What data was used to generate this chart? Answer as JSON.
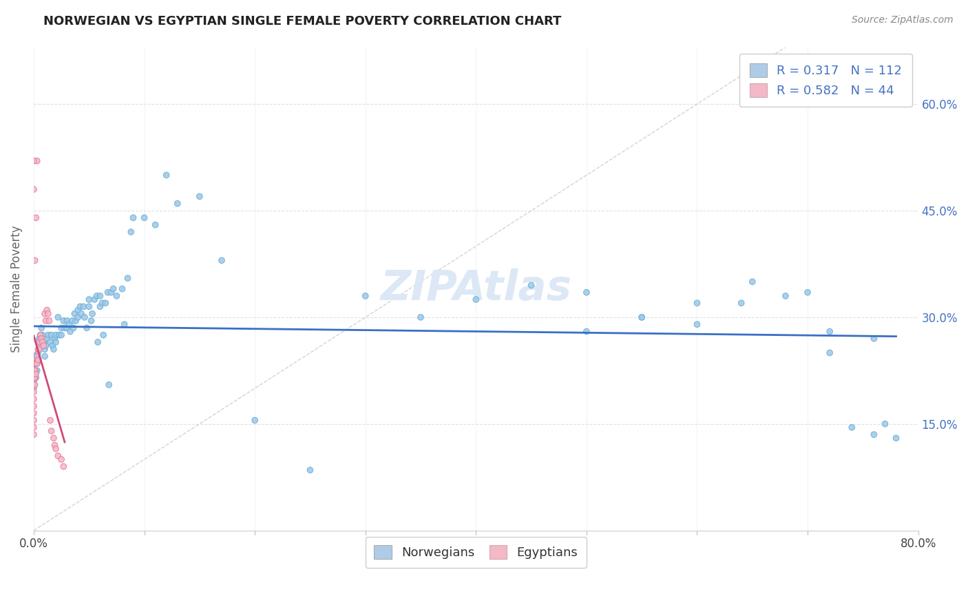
{
  "title": "NORWEGIAN VS EGYPTIAN SINGLE FEMALE POVERTY CORRELATION CHART",
  "source": "Source: ZipAtlas.com",
  "ylabel": "Single Female Poverty",
  "y_ticks": [
    0.15,
    0.3,
    0.45,
    0.6
  ],
  "y_tick_labels": [
    "15.0%",
    "30.0%",
    "45.0%",
    "60.0%"
  ],
  "x_range": [
    0.0,
    0.8
  ],
  "y_range": [
    0.0,
    0.68
  ],
  "x_ticks": [
    0.0,
    0.1,
    0.2,
    0.3,
    0.4,
    0.5,
    0.6,
    0.7,
    0.8
  ],
  "x_tick_labels": [
    "0.0%",
    "",
    "",
    "",
    "",
    "",
    "",
    "",
    "80.0%"
  ],
  "bottom_legend": [
    "Norwegians",
    "Egyptians"
  ],
  "norwegian_color": "#9dc8e8",
  "norwegian_edge": "#6aaed6",
  "egyptian_color": "#f4b8c8",
  "egyptian_edge": "#e87898",
  "norwegian_trend_color": "#3a6fc4",
  "egyptian_trend_color": "#d04878",
  "ref_line_color": "#c8c8c8",
  "watermark_color": "#dce8f5",
  "grid_color": "#e0e0e0",
  "r_n_color": "#4472c4",
  "title_color": "#222222",
  "source_color": "#888888",
  "ylabel_color": "#666666",
  "nor_legend_color": "#aecce8",
  "egy_legend_color": "#f4b8c8",
  "legend_R1": "0.317",
  "legend_N1": "112",
  "legend_R2": "0.582",
  "legend_N2": "44",
  "nor_x": [
    0.0,
    0.0,
    0.0,
    0.0,
    0.0,
    0.0,
    0.0,
    0.0,
    0.001,
    0.001,
    0.001,
    0.001,
    0.002,
    0.002,
    0.002,
    0.003,
    0.003,
    0.003,
    0.004,
    0.004,
    0.005,
    0.005,
    0.005,
    0.006,
    0.006,
    0.007,
    0.008,
    0.009,
    0.01,
    0.01,
    0.011,
    0.012,
    0.013,
    0.015,
    0.016,
    0.017,
    0.018,
    0.019,
    0.02,
    0.02,
    0.022,
    0.023,
    0.025,
    0.025,
    0.027,
    0.028,
    0.03,
    0.03,
    0.032,
    0.033,
    0.035,
    0.036,
    0.037,
    0.038,
    0.04,
    0.04,
    0.042,
    0.043,
    0.045,
    0.046,
    0.048,
    0.05,
    0.05,
    0.052,
    0.053,
    0.055,
    0.057,
    0.058,
    0.06,
    0.06,
    0.062,
    0.063,
    0.065,
    0.067,
    0.068,
    0.07,
    0.072,
    0.075,
    0.08,
    0.082,
    0.085,
    0.088,
    0.09,
    0.1,
    0.11,
    0.12,
    0.13,
    0.15,
    0.17,
    0.2,
    0.25,
    0.3,
    0.35,
    0.4,
    0.45,
    0.5,
    0.55,
    0.6,
    0.65,
    0.7,
    0.72,
    0.74,
    0.76,
    0.77,
    0.78,
    0.76,
    0.72,
    0.68,
    0.64,
    0.6,
    0.55,
    0.5
  ],
  "nor_y": [
    0.24,
    0.235,
    0.225,
    0.22,
    0.215,
    0.21,
    0.205,
    0.2,
    0.24,
    0.235,
    0.225,
    0.22,
    0.235,
    0.225,
    0.215,
    0.245,
    0.235,
    0.225,
    0.25,
    0.24,
    0.27,
    0.265,
    0.255,
    0.275,
    0.265,
    0.285,
    0.275,
    0.265,
    0.255,
    0.245,
    0.26,
    0.27,
    0.275,
    0.265,
    0.275,
    0.26,
    0.255,
    0.27,
    0.275,
    0.265,
    0.3,
    0.275,
    0.285,
    0.275,
    0.295,
    0.285,
    0.295,
    0.285,
    0.29,
    0.28,
    0.295,
    0.285,
    0.305,
    0.295,
    0.3,
    0.31,
    0.315,
    0.305,
    0.315,
    0.3,
    0.285,
    0.325,
    0.315,
    0.295,
    0.305,
    0.325,
    0.33,
    0.265,
    0.315,
    0.33,
    0.32,
    0.275,
    0.32,
    0.335,
    0.205,
    0.335,
    0.34,
    0.33,
    0.34,
    0.29,
    0.355,
    0.42,
    0.44,
    0.44,
    0.43,
    0.5,
    0.46,
    0.47,
    0.38,
    0.155,
    0.085,
    0.33,
    0.3,
    0.325,
    0.345,
    0.335,
    0.3,
    0.32,
    0.35,
    0.335,
    0.25,
    0.145,
    0.135,
    0.15,
    0.13,
    0.27,
    0.28,
    0.33,
    0.32,
    0.29,
    0.3,
    0.28
  ],
  "egy_x": [
    0.0,
    0.0,
    0.0,
    0.0,
    0.0,
    0.0,
    0.0,
    0.0,
    0.0,
    0.0,
    0.001,
    0.001,
    0.001,
    0.001,
    0.002,
    0.002,
    0.003,
    0.003,
    0.004,
    0.004,
    0.005,
    0.005,
    0.006,
    0.007,
    0.008,
    0.009,
    0.01,
    0.011,
    0.012,
    0.013,
    0.014,
    0.015,
    0.016,
    0.018,
    0.019,
    0.02,
    0.022,
    0.025,
    0.027,
    0.003,
    0.002,
    0.001,
    0.0,
    0.0
  ],
  "egy_y": [
    0.225,
    0.215,
    0.205,
    0.195,
    0.185,
    0.175,
    0.165,
    0.155,
    0.145,
    0.135,
    0.235,
    0.225,
    0.215,
    0.205,
    0.235,
    0.22,
    0.245,
    0.235,
    0.255,
    0.24,
    0.265,
    0.255,
    0.275,
    0.27,
    0.265,
    0.26,
    0.305,
    0.295,
    0.31,
    0.305,
    0.295,
    0.155,
    0.14,
    0.13,
    0.12,
    0.115,
    0.105,
    0.1,
    0.09,
    0.52,
    0.44,
    0.38,
    0.48,
    0.52
  ],
  "nor_sizes": [
    60,
    40,
    40,
    40,
    40,
    40,
    40,
    40,
    40,
    40,
    40,
    40,
    40,
    40,
    40,
    40,
    40,
    40,
    40,
    40,
    40,
    40,
    40,
    40,
    40,
    40,
    40,
    40,
    40,
    40,
    40,
    40,
    40,
    40,
    40,
    40,
    40,
    40,
    40,
    40,
    40,
    40,
    40,
    40,
    40,
    40,
    40,
    40,
    40,
    40,
    40,
    40,
    40,
    40,
    40,
    40,
    40,
    40,
    40,
    40,
    40,
    40,
    40,
    40,
    40,
    40,
    40,
    40,
    40,
    40,
    40,
    40,
    40,
    40,
    40,
    40,
    40,
    40,
    40,
    40,
    40,
    40,
    40,
    40,
    40,
    40,
    40,
    40,
    40,
    40,
    40,
    40,
    40,
    40,
    40,
    40,
    40,
    40,
    40,
    40,
    40,
    40,
    40,
    40,
    40,
    40,
    40,
    40,
    40,
    40,
    40,
    40
  ],
  "egy_sizes": [
    40,
    40,
    40,
    40,
    40,
    40,
    40,
    40,
    40,
    40,
    40,
    40,
    40,
    40,
    40,
    40,
    40,
    40,
    40,
    40,
    40,
    40,
    40,
    40,
    40,
    40,
    40,
    40,
    40,
    40,
    40,
    40,
    40,
    40,
    40,
    40,
    40,
    40,
    40,
    40,
    40,
    40,
    40,
    40
  ]
}
